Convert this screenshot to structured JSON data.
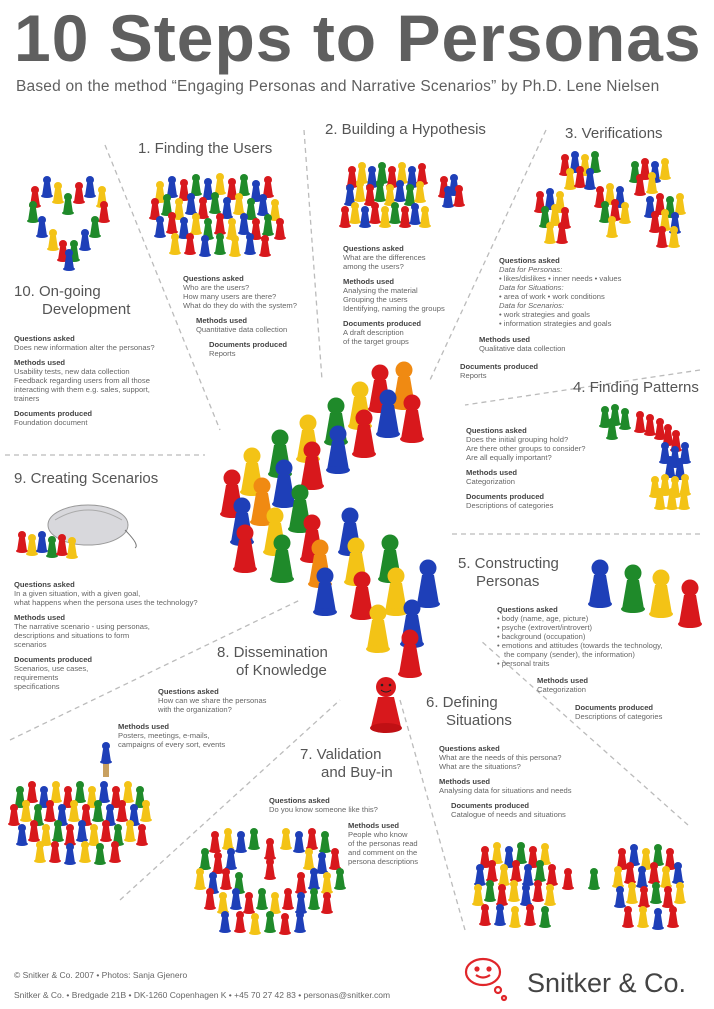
{
  "title": "10 Steps to Personas",
  "subtitle": "Based on the method “Engaging Personas and Narrative Scenarios” by Ph.D. Lene Nielsen",
  "labels": {
    "questions": "Questions asked",
    "methods": "Methods used",
    "documents": "Documents produced"
  },
  "steps": {
    "s1": {
      "title": "1.  Finding the Users",
      "questions": [
        "Who are the users?",
        "How many users are there?",
        "What do they do with the system?"
      ],
      "methods": [
        "Quantitative data collection"
      ],
      "documents": [
        "Reports"
      ]
    },
    "s2": {
      "title": "2.  Building a Hypothesis",
      "questions": [
        "What are the differences",
        "among the users?"
      ],
      "methods": [
        "Analysing the material",
        "Grouping the users",
        "Identifying, naming the groups"
      ],
      "documents": [
        "A draft description",
        "of the target groups"
      ]
    },
    "s3": {
      "title": "3.  Verifications",
      "personas_label": "Data for Personas:",
      "personas_items": [
        "likes/dislikes • inner needs • values"
      ],
      "situations_label": "Data for Situations:",
      "situations_items": [
        "area of work • work conditions"
      ],
      "scenarios_label": "Data for Scenarios:",
      "scenarios_items": [
        "work strategies and goals",
        "information strategies and goals"
      ],
      "methods": [
        "Qualitative data collection"
      ],
      "documents": [
        "Reports"
      ]
    },
    "s4": {
      "title": "4.  Finding Patterns",
      "questions": [
        "Does the initial grouping hold?",
        "Are there other groups to consider?",
        "Are all equally important?"
      ],
      "methods": [
        "Categorization"
      ],
      "documents": [
        "Descriptions of categories"
      ]
    },
    "s5": {
      "title_line1": "5.  Constructing",
      "title_line2": "Personas",
      "questions": [
        "body (name, age, picture)",
        "psyche (extrovert/introvert)",
        "background (occupation)",
        "emotions and attitudes (towards the technology,",
        "the company (sender), the information)",
        "personal traits"
      ],
      "methods": [
        "Categorization"
      ],
      "documents": [
        "Descriptions of categories"
      ]
    },
    "s6": {
      "title_line1": "6.  Defining",
      "title_line2": "Situations",
      "questions": [
        "What are the needs of this persona?",
        "What are the situations?"
      ],
      "methods": [
        "Analysing data for situations and needs"
      ],
      "documents": [
        "Catalogue of needs and situations"
      ]
    },
    "s7": {
      "title_line1": "7.  Validation",
      "title_line2": "and Buy-in",
      "questions": [
        "Do you know someone like this?"
      ],
      "methods": [
        "People who know",
        "of the personas read",
        "and comment on the",
        "persona descriptions"
      ]
    },
    "s8": {
      "title_line1": "8.  Dissemination",
      "title_line2": "of Knowledge",
      "questions": [
        "How can we share the personas",
        "with the organization?"
      ],
      "methods": [
        "Posters, meetings, e-mails,",
        "campaigns of every sort, events"
      ]
    },
    "s9": {
      "title": "9.  Creating Scenarios",
      "questions": [
        "In a given situation, with a given goal,",
        "what happens when the persona  uses the technology?"
      ],
      "methods": [
        "The narrative scenario - using personas,",
        "descriptions and situations to form",
        "scenarios"
      ],
      "documents": [
        "Scenarios, use cases,",
        "requirements",
        "specifications"
      ]
    },
    "s10": {
      "title_line1": "10.  On-going",
      "title_line2": "Development",
      "questions": [
        "Does new information alter the personas?"
      ],
      "methods": [
        "Usability tests, new data collection",
        "Feedback regarding users from all those",
        "interacting with them e.g. sales, support,",
        "trainers"
      ],
      "documents": [
        "Foundation document"
      ]
    }
  },
  "footer": {
    "line1": "© Snitker & Co. 2007  •  Photos: Sanja Gjenero",
    "line2": "Snitker & Co.  •  Bredgade 21B  •  DK-1260 Copenhagen K  •  +45 70 27 42 83  •  personas@snitker.com",
    "brand": "Snitker & Co."
  },
  "colors": {
    "red": "#d8181c",
    "blue": "#1e3fb8",
    "green": "#1f8a2a",
    "yellow": "#f3c316",
    "orange": "#f08a12",
    "text": "#555555",
    "logo": "#e0262a"
  }
}
